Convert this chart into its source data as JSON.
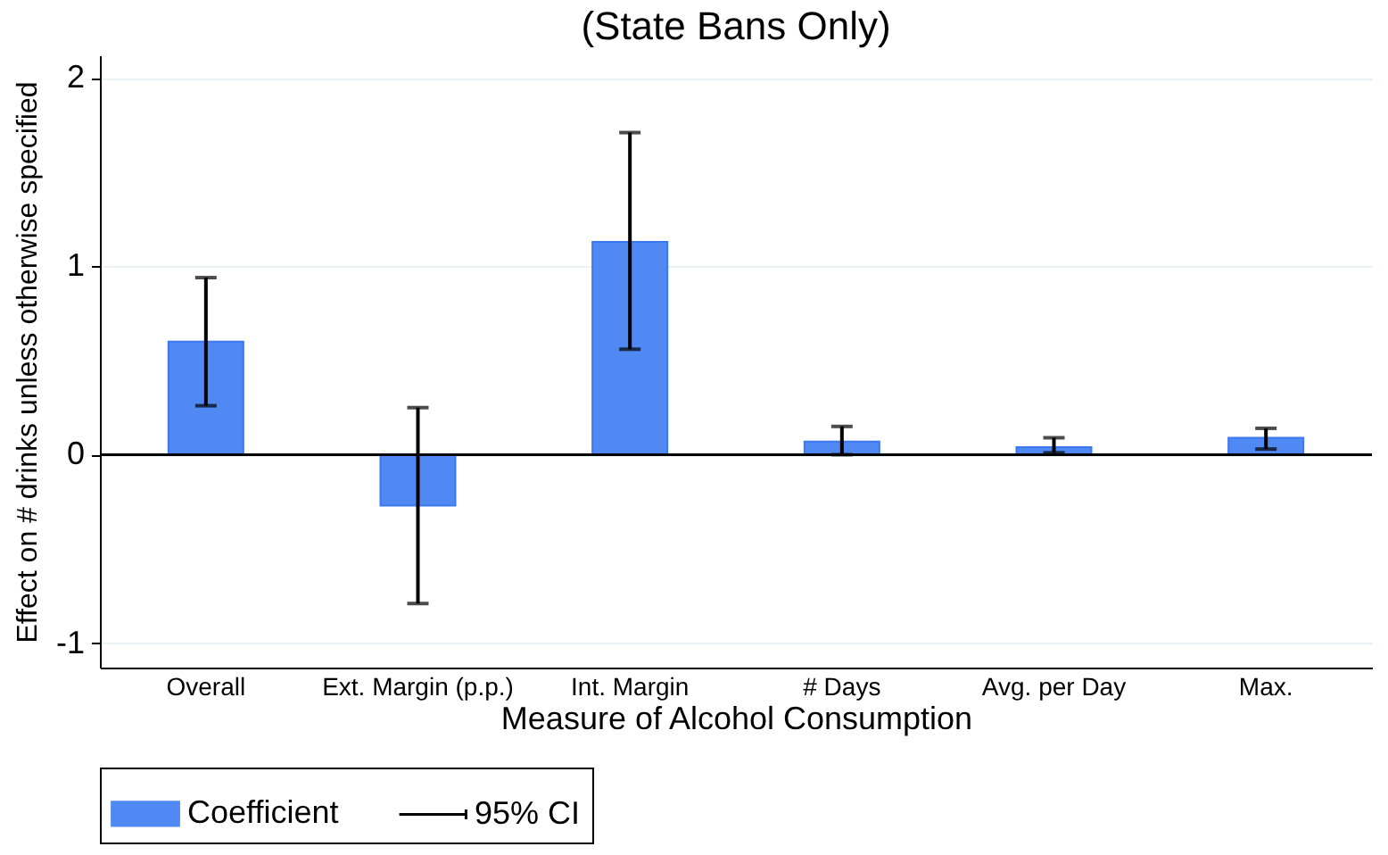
{
  "chart_data": {
    "type": "bar",
    "title": "(State Bans Only)",
    "xlabel": "Measure of Alcohol Consumption",
    "ylabel": "Effect on # drinks unless otherwise specified",
    "categories": [
      "Overall",
      "Ext. Margin (p.p.)",
      "Int. Margin",
      "# Days",
      "Avg. per Day",
      "Max."
    ],
    "series": [
      {
        "name": "Coefficient",
        "color": "#5089f4",
        "values": [
          0.6,
          -0.27,
          1.13,
          0.07,
          0.04,
          0.09
        ],
        "errors": [
          [
            0.26,
            0.94
          ],
          [
            -0.79,
            0.25
          ],
          [
            0.56,
            1.71
          ],
          [
            0.0,
            0.15
          ],
          [
            0.01,
            0.09
          ],
          [
            0.03,
            0.14
          ]
        ]
      }
    ],
    "annotations": [
      "95% CI"
    ],
    "ylim": [
      -1.13,
      2.12
    ],
    "yticks": [
      -1,
      0,
      1,
      2
    ],
    "grid": "y",
    "legend": "bottom",
    "ref_lines": [
      {
        "axis": "y",
        "value": 0,
        "color": "#000000"
      }
    ]
  }
}
